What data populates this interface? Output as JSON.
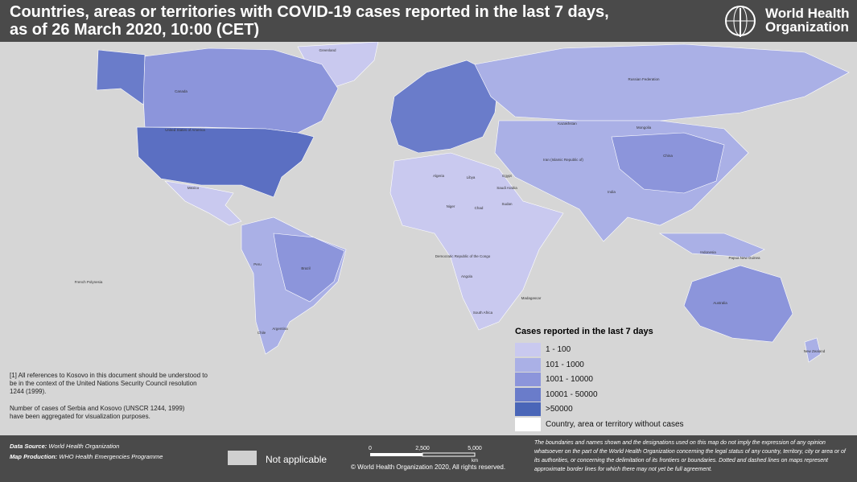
{
  "header": {
    "title_line1": "Countries, areas or territories with COVID-19  cases reported in the last 7 days,",
    "title_line2": "as of 26 March 2020, 10:00 (CET)",
    "org_line1": "World Health",
    "org_line2": "Organization"
  },
  "legend": {
    "title": "Cases reported in the last 7 days",
    "items": [
      {
        "label": "1 - 100",
        "color": "#c9c9ef"
      },
      {
        "label": "101 - 1000",
        "color": "#aab0e6"
      },
      {
        "label": "1001 - 10000",
        "color": "#8c95db"
      },
      {
        "label": "10001 - 50000",
        "color": "#6a7cca"
      },
      {
        "label": ">50000",
        "color": "#4a66b8"
      },
      {
        "label": "Country, area or territory without cases",
        "color": "#ffffff"
      }
    ]
  },
  "notes": [
    "[1] All references to Kosovo in this document should be understood to be in the context of the United Nations Security Council resolution 1244 (1999).",
    "Number of cases of Serbia and Kosovo (UNSCR 1244, 1999) have been aggregated for visualization purposes."
  ],
  "map_labels": [
    "Greenland",
    "Canada",
    "United States of America",
    "Mexico",
    "Brazil",
    "Argentina",
    "Peru",
    "Chile",
    "Russian Federation",
    "Kazakhstan",
    "China",
    "Mongolia",
    "India",
    "Iran (Islamic Republic of)",
    "Saudi Arabia",
    "Algeria",
    "Libya",
    "Egypt",
    "Chad",
    "Niger",
    "Sudan",
    "Democratic Republic of the Congo",
    "Angola",
    "South Africa",
    "Madagascar",
    "Australia",
    "Indonesia",
    "New Zealand",
    "French Polynesia",
    "Papua New Guinea"
  ],
  "footer": {
    "source_label": "Data Source:",
    "source": "World Health Organization",
    "production_label": "Map Production:",
    "production": "WHO Health Emergencies Programme",
    "not_applicable": "Not applicable",
    "scale": [
      "0",
      "2,500",
      "5,000",
      "km"
    ],
    "copyright": "© World Health Organization  2020, All rights reserved.",
    "disclaimer": "The boundaries and names shown and the designations used on this map do not imply the expression of any opinion whatsoever on the part of the World Health Organization concerning the legal status of any country, territory, city or area or of its authorities, or concerning the delimitation of its frontiers or boundaries. Dotted and dashed lines on maps represent approximate border lines for which there may not yet be full agreement."
  }
}
